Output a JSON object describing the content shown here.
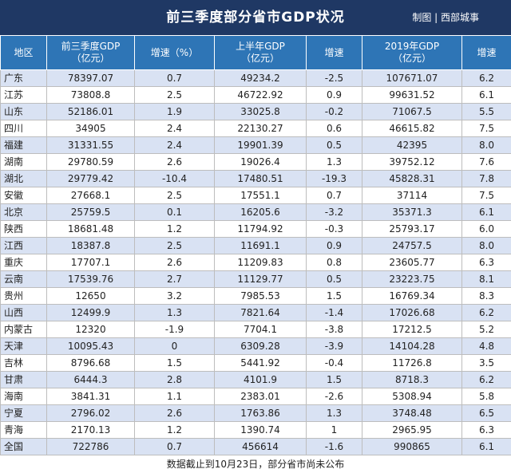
{
  "header": {
    "title": "前三季度部分省市GDP状况",
    "credit": "制图 | 西部城事"
  },
  "columns": [
    [
      "地区"
    ],
    [
      "前三季度GDP",
      "（亿元）"
    ],
    [
      "增速（%）"
    ],
    [
      "上半年GDP",
      "（亿元）"
    ],
    [
      "增速"
    ],
    [
      "2019年GDP",
      "（亿元）"
    ],
    [
      "增速"
    ]
  ],
  "rows": [
    [
      "广东",
      "78397.07",
      "0.7",
      "49234.2",
      "-2.5",
      "107671.07",
      "6.2"
    ],
    [
      "江苏",
      "73808.8",
      "2.5",
      "46722.92",
      "0.9",
      "99631.52",
      "6.1"
    ],
    [
      "山东",
      "52186.01",
      "1.9",
      "33025.8",
      "-0.2",
      "71067.5",
      "5.5"
    ],
    [
      "四川",
      "34905",
      "2.4",
      "22130.27",
      "0.6",
      "46615.82",
      "7.5"
    ],
    [
      "福建",
      "31331.55",
      "2.4",
      "19901.39",
      "0.5",
      "42395",
      "8.0"
    ],
    [
      "湖南",
      "29780.59",
      "2.6",
      "19026.4",
      "1.3",
      "39752.12",
      "7.6"
    ],
    [
      "湖北",
      "29779.42",
      "-10.4",
      "17480.51",
      "-19.3",
      "45828.31",
      "7.8"
    ],
    [
      "安徽",
      "27668.1",
      "2.5",
      "17551.1",
      "0.7",
      "37114",
      "7.5"
    ],
    [
      "北京",
      "25759.5",
      "0.1",
      "16205.6",
      "-3.2",
      "35371.3",
      "6.1"
    ],
    [
      "陕西",
      "18681.48",
      "1.2",
      "11794.92",
      "-0.3",
      "25793.17",
      "6.0"
    ],
    [
      "江西",
      "18387.8",
      "2.5",
      "11691.1",
      "0.9",
      "24757.5",
      "8.0"
    ],
    [
      "重庆",
      "17707.1",
      "2.6",
      "11209.83",
      "0.8",
      "23605.77",
      "6.3"
    ],
    [
      "云南",
      "17539.76",
      "2.7",
      "11129.77",
      "0.5",
      "23223.75",
      "8.1"
    ],
    [
      "贵州",
      "12650",
      "3.2",
      "7985.53",
      "1.5",
      "16769.34",
      "8.3"
    ],
    [
      "山西",
      "12499.9",
      "1.3",
      "7821.64",
      "-1.4",
      "17026.68",
      "6.2"
    ],
    [
      "内蒙古",
      "12320",
      "-1.9",
      "7704.1",
      "-3.8",
      "17212.5",
      "5.2"
    ],
    [
      "天津",
      "10095.43",
      "0",
      "6309.28",
      "-3.9",
      "14104.28",
      "4.8"
    ],
    [
      "吉林",
      "8796.68",
      "1.5",
      "5441.92",
      "-0.4",
      "11726.8",
      "3.5"
    ],
    [
      "甘肃",
      "6444.3",
      "2.8",
      "4101.9",
      "1.5",
      "8718.3",
      "6.2"
    ],
    [
      "海南",
      "3841.31",
      "1.1",
      "2383.01",
      "-2.6",
      "5308.94",
      "5.8"
    ],
    [
      "宁夏",
      "2796.02",
      "2.6",
      "1763.86",
      "1.3",
      "3748.48",
      "6.5"
    ],
    [
      "青海",
      "2170.13",
      "1.2",
      "1390.74",
      "1",
      "2965.95",
      "6.3"
    ],
    [
      "全国",
      "722786",
      "0.7",
      "456614",
      "-1.6",
      "990865",
      "6.1"
    ]
  ],
  "footer": "数据截止到10月23日，部分省市尚未公布"
}
